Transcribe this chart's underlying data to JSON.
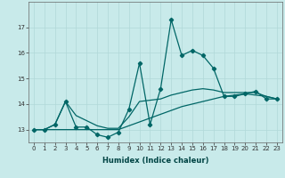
{
  "title": "",
  "xlabel": "Humidex (Indice chaleur)",
  "background_color": "#c8eaea",
  "grid_color": "#b0d8d8",
  "line_color": "#006666",
  "x": [
    0,
    1,
    2,
    3,
    4,
    5,
    6,
    7,
    8,
    9,
    10,
    11,
    12,
    13,
    14,
    15,
    16,
    17,
    18,
    19,
    20,
    21,
    22,
    23
  ],
  "y_main": [
    13.0,
    13.0,
    13.2,
    14.1,
    13.1,
    13.1,
    12.8,
    12.7,
    12.9,
    13.8,
    15.6,
    13.2,
    14.6,
    17.3,
    15.9,
    16.1,
    15.9,
    15.4,
    14.3,
    14.3,
    14.4,
    14.5,
    14.2,
    14.2
  ],
  "y_low": [
    13.0,
    13.0,
    13.0,
    13.0,
    13.0,
    13.0,
    13.0,
    13.0,
    13.0,
    13.15,
    13.3,
    13.45,
    13.6,
    13.75,
    13.9,
    14.0,
    14.1,
    14.2,
    14.3,
    14.35,
    14.4,
    14.35,
    14.3,
    14.2
  ],
  "y_high": [
    13.0,
    13.0,
    13.2,
    14.1,
    13.55,
    13.35,
    13.15,
    13.05,
    13.05,
    13.5,
    14.1,
    14.15,
    14.2,
    14.35,
    14.45,
    14.55,
    14.6,
    14.55,
    14.45,
    14.45,
    14.45,
    14.45,
    14.3,
    14.2
  ],
  "xlim": [
    -0.5,
    23.5
  ],
  "ylim": [
    12.5,
    18.0
  ],
  "yticks": [
    13,
    14,
    15,
    16,
    17
  ],
  "xticks": [
    0,
    1,
    2,
    3,
    4,
    5,
    6,
    7,
    8,
    9,
    10,
    11,
    12,
    13,
    14,
    15,
    16,
    17,
    18,
    19,
    20,
    21,
    22,
    23
  ],
  "marker_size": 2.2,
  "linewidth": 0.9,
  "tick_fontsize": 5.0,
  "xlabel_fontsize": 6.0
}
